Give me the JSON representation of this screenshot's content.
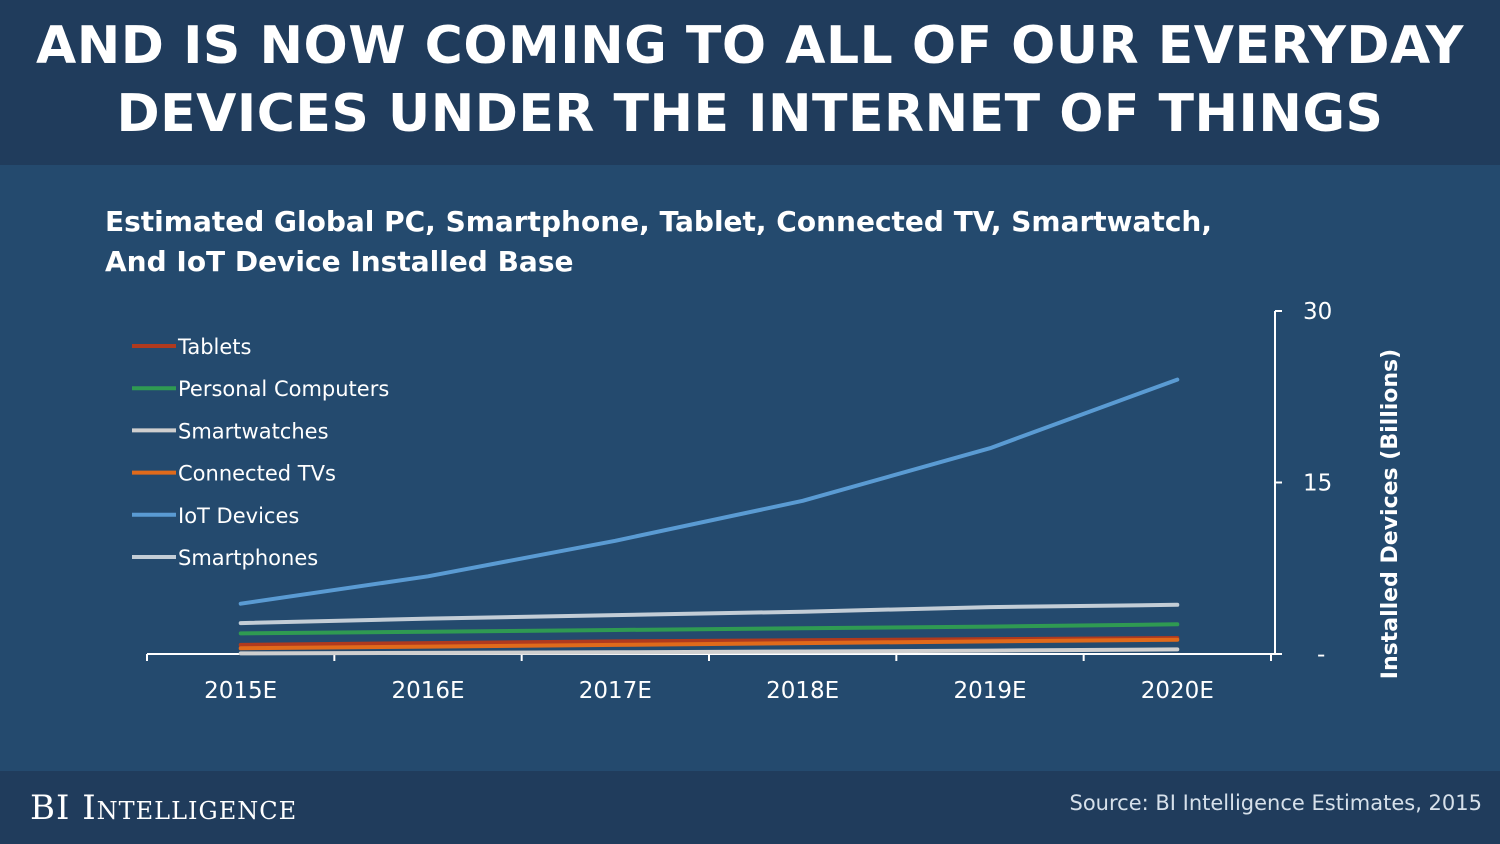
{
  "headline": {
    "line1": "AND IS NOW COMING TO ALL OF OUR EVERYDAY",
    "line2": "DEVICES UNDER THE INTERNET OF THINGS"
  },
  "chart_data": {
    "type": "line",
    "title_line1": "Estimated Global PC, Smartphone, Tablet, Connected TV, Smartwatch,",
    "title_line2": "And IoT Device Installed Base",
    "categories": [
      "2015E",
      "2016E",
      "2017E",
      "2018E",
      "2019E",
      "2020E"
    ],
    "ylabel": "Installed Devices (Billions)",
    "ylim": [
      0,
      30
    ],
    "yticks": [
      {
        "value": 30,
        "label": "30"
      },
      {
        "value": 15,
        "label": "15"
      },
      {
        "value": 0,
        "label": "-"
      }
    ],
    "legend_position": "top-left",
    "series": [
      {
        "name": "Tablets",
        "color": "#b03a1e",
        "values": [
          0.8,
          0.95,
          1.1,
          1.2,
          1.3,
          1.4
        ]
      },
      {
        "name": "Personal Computers",
        "color": "#2f9a52",
        "values": [
          1.8,
          1.95,
          2.1,
          2.25,
          2.4,
          2.6
        ]
      },
      {
        "name": "Smartwatches",
        "color": "#cfcfcf",
        "values": [
          0.05,
          0.1,
          0.15,
          0.22,
          0.3,
          0.4
        ]
      },
      {
        "name": "Connected TVs",
        "color": "#e06a1b",
        "values": [
          0.5,
          0.65,
          0.8,
          0.95,
          1.1,
          1.25
        ]
      },
      {
        "name": "IoT Devices",
        "color": "#5a9bd3",
        "values": [
          4.4,
          6.8,
          9.9,
          13.4,
          18.0,
          24.0
        ]
      },
      {
        "name": "Smartphones",
        "color": "#c3cdd6",
        "values": [
          2.7,
          3.1,
          3.4,
          3.7,
          4.1,
          4.3
        ]
      }
    ]
  },
  "footer": {
    "brand": "BI Intelligence",
    "source": "Source: BI Intelligence Estimates, 2015"
  }
}
